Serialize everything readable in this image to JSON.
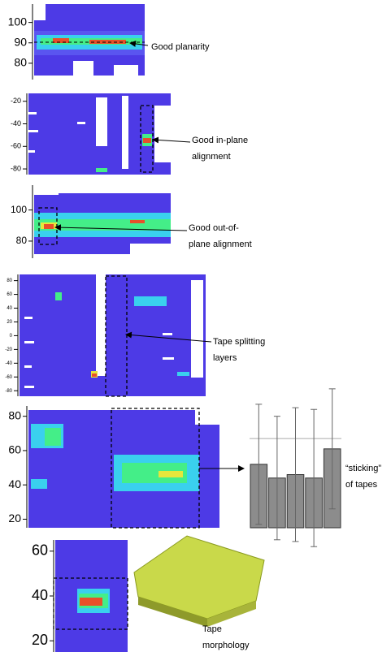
{
  "chart_data": [
    {
      "type": "heatmap",
      "ylim": [
        109,
        72
      ],
      "yticks": [
        100,
        90,
        80
      ],
      "annotation": [
        "Good planarity"
      ]
    },
    {
      "type": "heatmap",
      "ylim": [
        -13,
        -85
      ],
      "yticks": [
        -20,
        -40,
        -60,
        -80
      ],
      "annotation": [
        "Good in-plane",
        "alignment"
      ]
    },
    {
      "type": "heatmap",
      "ylim": [
        116,
        69
      ],
      "yticks": [
        100,
        80
      ],
      "annotation": [
        "Good out-of-",
        "plane alignment"
      ]
    },
    {
      "type": "heatmap",
      "ylim": [
        89,
        -88
      ],
      "yticks": [
        80,
        60,
        40,
        20,
        0,
        -20,
        -40,
        -60,
        -80
      ],
      "annotation": [
        "Tape splitting",
        "layers"
      ]
    },
    {
      "type": "heatmap",
      "ylim": [
        86,
        15
      ],
      "yticks": [
        80,
        60,
        40,
        20
      ],
      "annotation": []
    },
    {
      "type": "bar",
      "ylim": [
        86,
        15
      ],
      "values": [
        52,
        44,
        46,
        44,
        61
      ],
      "errors": [
        35,
        36,
        39,
        40,
        35
      ],
      "color": "#8c8c8c",
      "reference_line": 67,
      "annotation": [
        "“sticking”",
        "of tapes"
      ]
    },
    {
      "type": "heatmap",
      "ylim": [
        65,
        15
      ],
      "yticks": [
        60,
        40,
        20
      ],
      "annotation": [
        "Tape",
        "morphology"
      ]
    }
  ]
}
